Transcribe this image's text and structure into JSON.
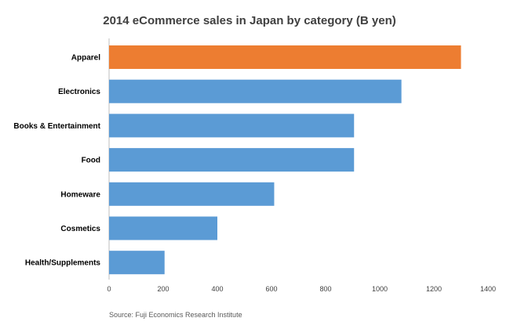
{
  "chart_data": {
    "type": "bar",
    "orientation": "horizontal",
    "title": "2014 eCommerce sales in Japan by category (B yen)",
    "categories": [
      "Apparel",
      "Electronics",
      "Books & Entertainment",
      "Food",
      "Homeware",
      "Cosmetics",
      "Health/Supplements"
    ],
    "values": [
      1300,
      1080,
      905,
      905,
      610,
      400,
      205
    ],
    "xlim": [
      0,
      1400
    ],
    "xticks": [
      "0",
      "200",
      "400",
      "600",
      "800",
      "1000",
      "1200",
      "1400"
    ],
    "xlabel": "",
    "ylabel": "",
    "grid": false,
    "legend": "none",
    "highlight_category": "Apparel",
    "colors": {
      "default": "#5b9bd5",
      "highlight": "#ed7d31",
      "axis": "#bfbfbf"
    }
  },
  "source": "Source: Fuji Economics Research Institute"
}
